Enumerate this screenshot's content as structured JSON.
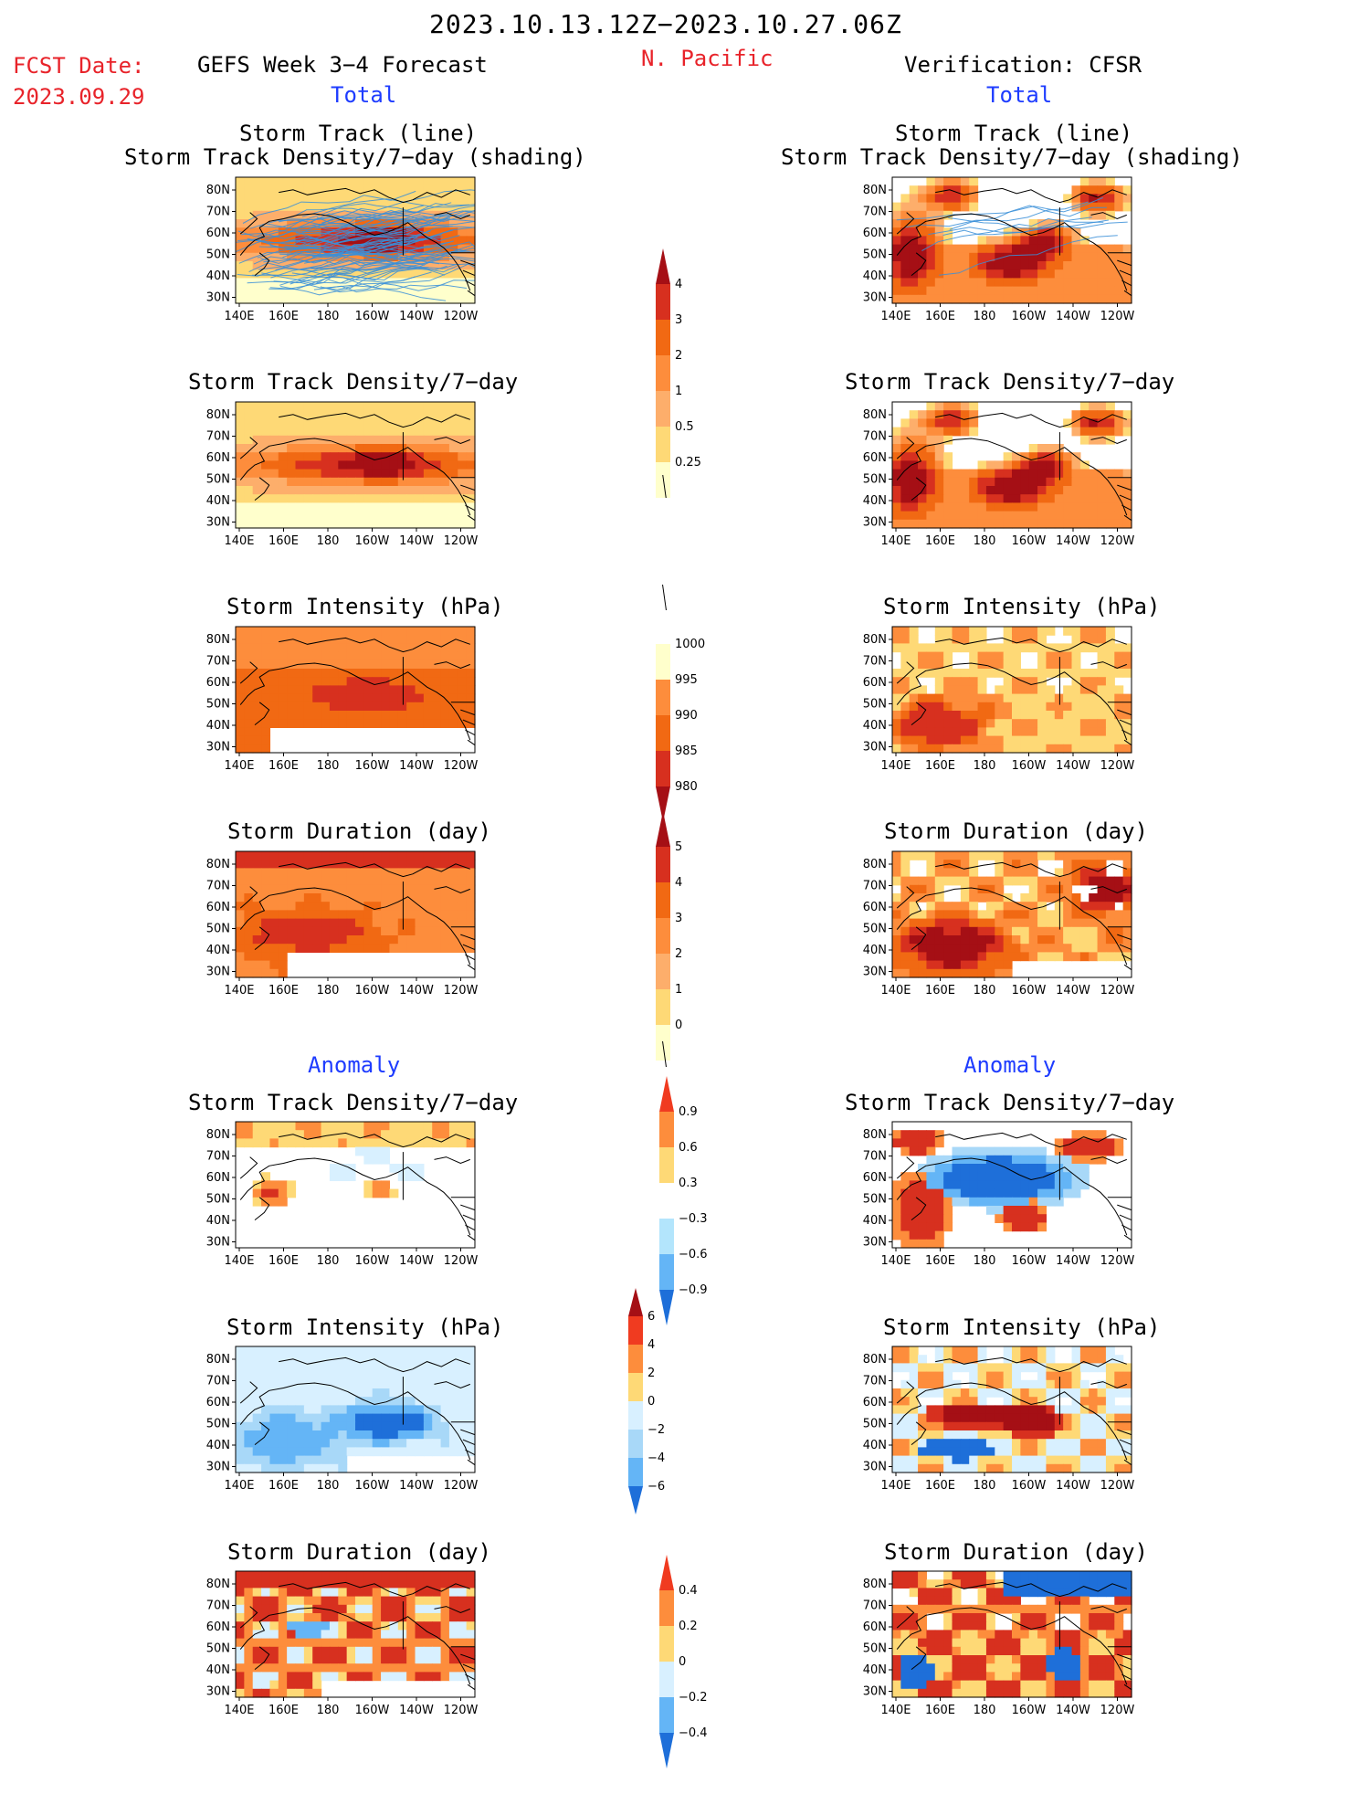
{
  "header": {
    "date_range": "2023.10.13.12Z−2023.10.27.06Z",
    "fcst_label": "FCST Date:",
    "fcst_date": "2023.09.29",
    "forecast_title": "GEFS Week 3−4 Forecast",
    "region": "N. Pacific",
    "verification": "Verification: CFSR"
  },
  "section_labels": {
    "total": "Total",
    "anomaly": "Anomaly"
  },
  "panel_titles": {
    "track_line": "Storm Track (line)",
    "track_density_shading": "Storm Track Density/7−day (shading)",
    "track_density": "Storm Track Density/7−day",
    "intensity": "Storm Intensity (hPa)",
    "duration": "Storm Duration (day)"
  },
  "axes": {
    "lon_ticks": [
      "140E",
      "160E",
      "180",
      "160W",
      "140W",
      "120W"
    ],
    "lat_ticks": [
      "80N",
      "70N",
      "60N",
      "50N",
      "40N",
      "30N"
    ]
  },
  "colorbars": {
    "density": {
      "labels": [
        "4",
        "3",
        "2",
        "1",
        "0.5",
        "0.25"
      ],
      "colors": [
        "#a50f15",
        "#d7301f",
        "#f16913",
        "#fd8d3c",
        "#fdae6b",
        "#fed976",
        "#ffffcc"
      ]
    },
    "intensity": {
      "labels": [
        "1000",
        "995",
        "990",
        "985",
        "980"
      ],
      "colors": [
        "#ffffff",
        "#ffffcc",
        "#fd8d3c",
        "#f16913",
        "#d7301f",
        "#a50f15"
      ]
    },
    "duration": {
      "labels": [
        "5",
        "4",
        "3",
        "2",
        "1",
        "0"
      ],
      "colors": [
        "#a50f15",
        "#d7301f",
        "#f16913",
        "#fd8d3c",
        "#fdae6b",
        "#fed976",
        "#ffffcc"
      ]
    },
    "anom_density": {
      "labels": [
        "0.9",
        "0.6",
        "0.3",
        "−0.3",
        "−0.6",
        "−0.9"
      ],
      "colors": [
        "#f03b20",
        "#fd8d3c",
        "#fed976",
        "#ffffff",
        "#b3e5fc",
        "#64b5f6",
        "#1e6fd9"
      ]
    },
    "anom_intensity": {
      "labels": [
        "6",
        "4",
        "2",
        "0",
        "−2",
        "−4",
        "−6"
      ],
      "colors": [
        "#a50f15",
        "#f03b20",
        "#fd8d3c",
        "#fed976",
        "#d8f0ff",
        "#a8d8f8",
        "#64b5f6",
        "#1e6fd9"
      ]
    },
    "anom_duration": {
      "labels": [
        "0.4",
        "0.2",
        "0",
        "−0.2",
        "−0.4"
      ],
      "colors": [
        "#f03b20",
        "#fd8d3c",
        "#fed976",
        "#d8f0ff",
        "#64b5f6",
        "#1e6fd9"
      ]
    }
  },
  "colors": {
    "red_text": "#e8232a",
    "blue_text": "#1e3cff",
    "track_line": "#3a8fd8",
    "coast": "#000000"
  }
}
